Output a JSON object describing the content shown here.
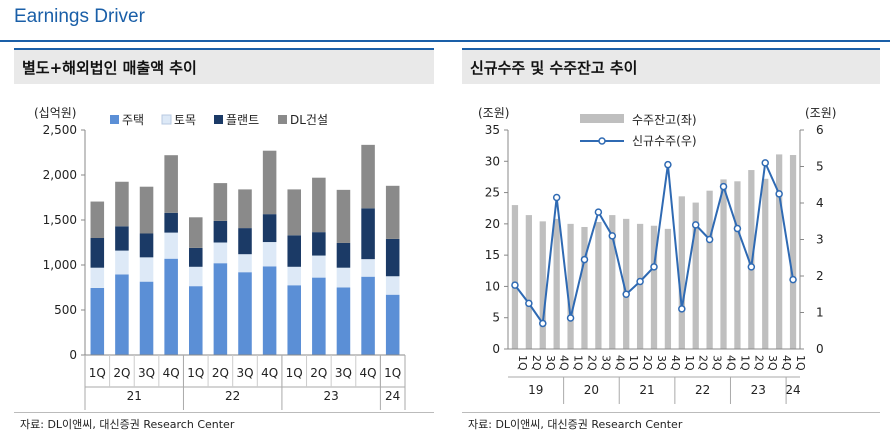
{
  "page": {
    "title": "Earnings Driver"
  },
  "panels": {
    "left": {
      "title": "별도+해외법인 매출액 추이",
      "source": "자료: DL이앤씨, 대신증권 Research Center"
    },
    "right": {
      "title": "신규수주 및 수주잔고 추이",
      "source": "자료: DL이앤씨, 대신증권 Research Center"
    }
  },
  "colors": {
    "주택": "#5b8fd6",
    "토목": "#dde9f7",
    "플랜트": "#1b3a66",
    "DL건설": "#8a8a8a",
    "backlog": "#bfbfbf",
    "orders_line": "#2f6ab3"
  },
  "chart_data": [
    {
      "type": "bar",
      "stacked": true,
      "unit_label": "(십억원)",
      "ylim": [
        0,
        2500
      ],
      "yticks": [
        "0",
        "500",
        "1,000",
        "1,500",
        "2,000",
        "2,500"
      ],
      "categories": [
        "1Q",
        "2Q",
        "3Q",
        "4Q",
        "1Q",
        "2Q",
        "3Q",
        "4Q",
        "1Q",
        "2Q",
        "3Q",
        "4Q",
        "1Q"
      ],
      "groups": [
        {
          "label": "21",
          "span": 4
        },
        {
          "label": "22",
          "span": 4
        },
        {
          "label": "23",
          "span": 4
        },
        {
          "label": "24",
          "span": 1
        }
      ],
      "legend_position": "top",
      "series": [
        {
          "name": "주택",
          "values": [
            745,
            895,
            815,
            1070,
            765,
            1020,
            920,
            985,
            775,
            860,
            750,
            870,
            670
          ]
        },
        {
          "name": "토목",
          "values": [
            225,
            265,
            270,
            290,
            215,
            230,
            200,
            270,
            205,
            245,
            220,
            195,
            205
          ]
        },
        {
          "name": "플랜트",
          "values": [
            330,
            270,
            265,
            220,
            210,
            240,
            290,
            310,
            350,
            260,
            275,
            565,
            415
          ]
        },
        {
          "name": "DL건설",
          "values": [
            405,
            495,
            520,
            640,
            340,
            420,
            430,
            705,
            510,
            605,
            590,
            705,
            590
          ]
        }
      ]
    },
    {
      "type": "bar+line",
      "left_unit_label": "(조원)",
      "right_unit_label": "(조원)",
      "ylim_left": [
        0,
        35
      ],
      "ylim_right": [
        0,
        6
      ],
      "yticks_left": [
        "0",
        "5",
        "10",
        "15",
        "20",
        "25",
        "30",
        "35"
      ],
      "yticks_right": [
        "0",
        "1",
        "2",
        "3",
        "4",
        "5",
        "6"
      ],
      "categories": [
        "1Q",
        "2Q",
        "3Q",
        "4Q",
        "1Q",
        "2Q",
        "3Q",
        "4Q",
        "1Q",
        "2Q",
        "3Q",
        "4Q",
        "1Q",
        "2Q",
        "3Q",
        "4Q",
        "1Q",
        "2Q",
        "3Q",
        "4Q",
        "1Q"
      ],
      "groups": [
        {
          "label": "19",
          "span": 4
        },
        {
          "label": "20",
          "span": 4
        },
        {
          "label": "21",
          "span": 4
        },
        {
          "label": "22",
          "span": 4
        },
        {
          "label": "23",
          "span": 4
        },
        {
          "label": "24",
          "span": 1
        }
      ],
      "legend_position": "top-left",
      "series": [
        {
          "name": "수주잔고(좌)",
          "type": "bar",
          "axis": "left",
          "values": [
            23.0,
            21.4,
            20.4,
            20.8,
            20.0,
            19.5,
            20.3,
            21.4,
            20.8,
            20.0,
            19.7,
            19.2,
            24.4,
            23.4,
            25.3,
            27.1,
            26.8,
            28.6,
            27.2,
            31.1,
            31.0
          ]
        },
        {
          "name": "신규수주(우)",
          "type": "line",
          "axis": "right",
          "values": [
            1.75,
            1.25,
            0.7,
            4.15,
            0.85,
            2.45,
            3.75,
            3.1,
            1.5,
            1.85,
            2.25,
            5.05,
            1.1,
            3.4,
            3.0,
            4.45,
            3.3,
            2.25,
            5.1,
            4.25,
            1.9
          ]
        }
      ]
    }
  ]
}
